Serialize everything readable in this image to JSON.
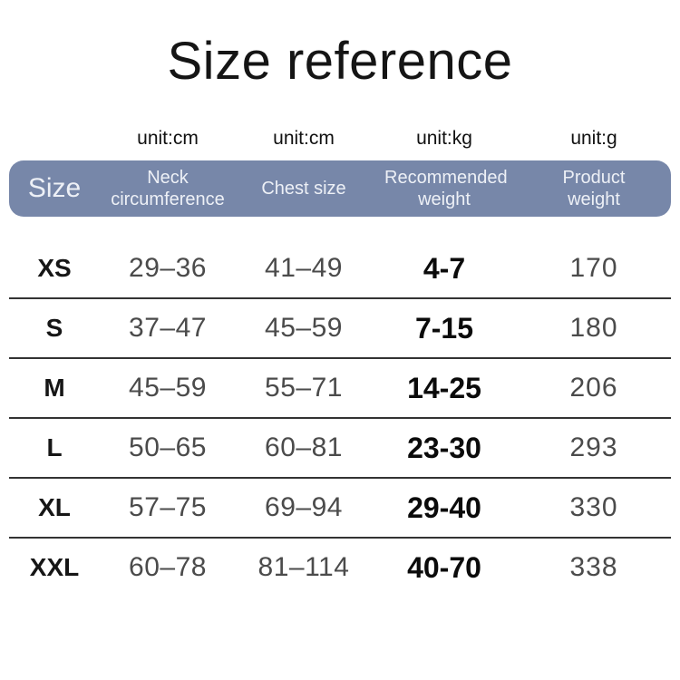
{
  "title": "Size reference",
  "units": {
    "neck": "unit:cm",
    "chest": "unit:cm",
    "recommended": "unit:kg",
    "product": "unit:g"
  },
  "header": {
    "size": "Size",
    "neck": "Neck circumference",
    "chest": "Chest size",
    "recommended": "Recommended weight",
    "product": "Product weight"
  },
  "rows": [
    {
      "size": "XS",
      "neck": "29–36",
      "chest": "41–49",
      "recommended": "4-7",
      "product": "170"
    },
    {
      "size": "S",
      "neck": "37–47",
      "chest": "45–59",
      "recommended": "7-15",
      "product": "180"
    },
    {
      "size": "M",
      "neck": "45–59",
      "chest": "55–71",
      "recommended": "14-25",
      "product": "206"
    },
    {
      "size": "L",
      "neck": "50–65",
      "chest": "60–81",
      "recommended": "23-30",
      "product": "293"
    },
    {
      "size": "XL",
      "neck": "57–75",
      "chest": "69–94",
      "recommended": "29-40",
      "product": "330"
    },
    {
      "size": "XXL",
      "neck": "60–78",
      "chest": "81–114",
      "recommended": "40-70",
      "product": "338"
    }
  ],
  "colors": {
    "header_bg": "#7787a9",
    "header_text": "#edf0f6",
    "value_text": "#4b4b4b",
    "emphasis_text": "#0b0b0b",
    "divider": "#333333"
  },
  "chart_data": {
    "type": "table",
    "title": "Size reference",
    "columns": [
      "Size",
      "Neck circumference",
      "Chest size",
      "Recommended weight",
      "Product weight"
    ],
    "column_units": [
      "",
      "unit:cm",
      "unit:cm",
      "unit:kg",
      "unit:g"
    ],
    "rows": [
      [
        "XS",
        "29–36",
        "41–49",
        "4-7",
        "170"
      ],
      [
        "S",
        "37–47",
        "45–59",
        "7-15",
        "180"
      ],
      [
        "M",
        "45–59",
        "55–71",
        "14-25",
        "206"
      ],
      [
        "L",
        "50–65",
        "60–81",
        "23-30",
        "293"
      ],
      [
        "XL",
        "57–75",
        "69–94",
        "29-40",
        "330"
      ],
      [
        "XXL",
        "60–78",
        "81–114",
        "40-70",
        "338"
      ]
    ]
  }
}
